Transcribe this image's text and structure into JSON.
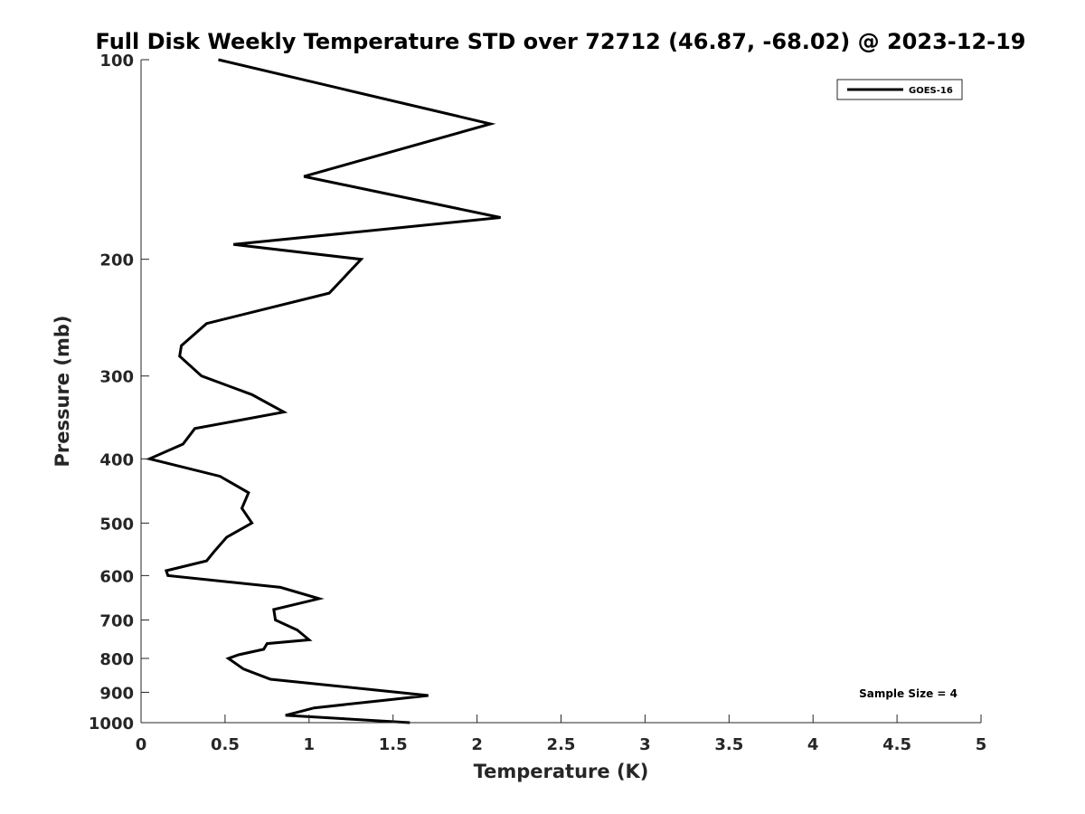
{
  "chart_data": {
    "type": "line",
    "title": "Full Disk Weekly Temperature STD over 72712 (46.87, -68.02) @ 2023-12-19",
    "xlabel": "Temperature (K)",
    "ylabel": "Pressure (mb)",
    "xlim": [
      0,
      5
    ],
    "ylim": [
      100,
      1000
    ],
    "y_scale": "log",
    "y_reversed": true,
    "grid": false,
    "x_ticks": [
      0,
      0.5,
      1,
      1.5,
      2,
      2.5,
      3,
      3.5,
      4,
      4.5,
      5
    ],
    "y_ticks": [
      100,
      200,
      300,
      400,
      500,
      600,
      700,
      800,
      900,
      1000
    ],
    "legend": {
      "position": "top-right",
      "entries": [
        "GOES-16"
      ]
    },
    "annotation": "Sample Size = 4",
    "line_color": "#000000",
    "series": [
      {
        "name": "GOES-16",
        "points": [
          [
            0.46,
            100
          ],
          [
            2.08,
            125
          ],
          [
            0.97,
            150
          ],
          [
            2.14,
            173
          ],
          [
            0.55,
            190
          ],
          [
            1.31,
            200
          ],
          [
            1.12,
            225
          ],
          [
            0.39,
            250
          ],
          [
            0.24,
            270
          ],
          [
            0.23,
            280
          ],
          [
            0.36,
            300
          ],
          [
            0.66,
            320
          ],
          [
            0.85,
            340
          ],
          [
            0.32,
            360
          ],
          [
            0.25,
            380
          ],
          [
            0.05,
            400
          ],
          [
            0.47,
            425
          ],
          [
            0.64,
            450
          ],
          [
            0.6,
            475
          ],
          [
            0.66,
            500
          ],
          [
            0.51,
            525
          ],
          [
            0.44,
            550
          ],
          [
            0.39,
            570
          ],
          [
            0.15,
            590
          ],
          [
            0.16,
            600
          ],
          [
            0.83,
            625
          ],
          [
            1.06,
            650
          ],
          [
            0.79,
            675
          ],
          [
            0.8,
            700
          ],
          [
            0.93,
            725
          ],
          [
            1.0,
            750
          ],
          [
            0.75,
            760
          ],
          [
            0.73,
            775
          ],
          [
            0.58,
            790
          ],
          [
            0.52,
            800
          ],
          [
            0.61,
            830
          ],
          [
            0.77,
            860
          ],
          [
            1.53,
            900
          ],
          [
            1.71,
            910
          ],
          [
            1.45,
            925
          ],
          [
            1.03,
            950
          ],
          [
            0.86,
            975
          ],
          [
            1.6,
            1000
          ]
        ]
      }
    ]
  }
}
